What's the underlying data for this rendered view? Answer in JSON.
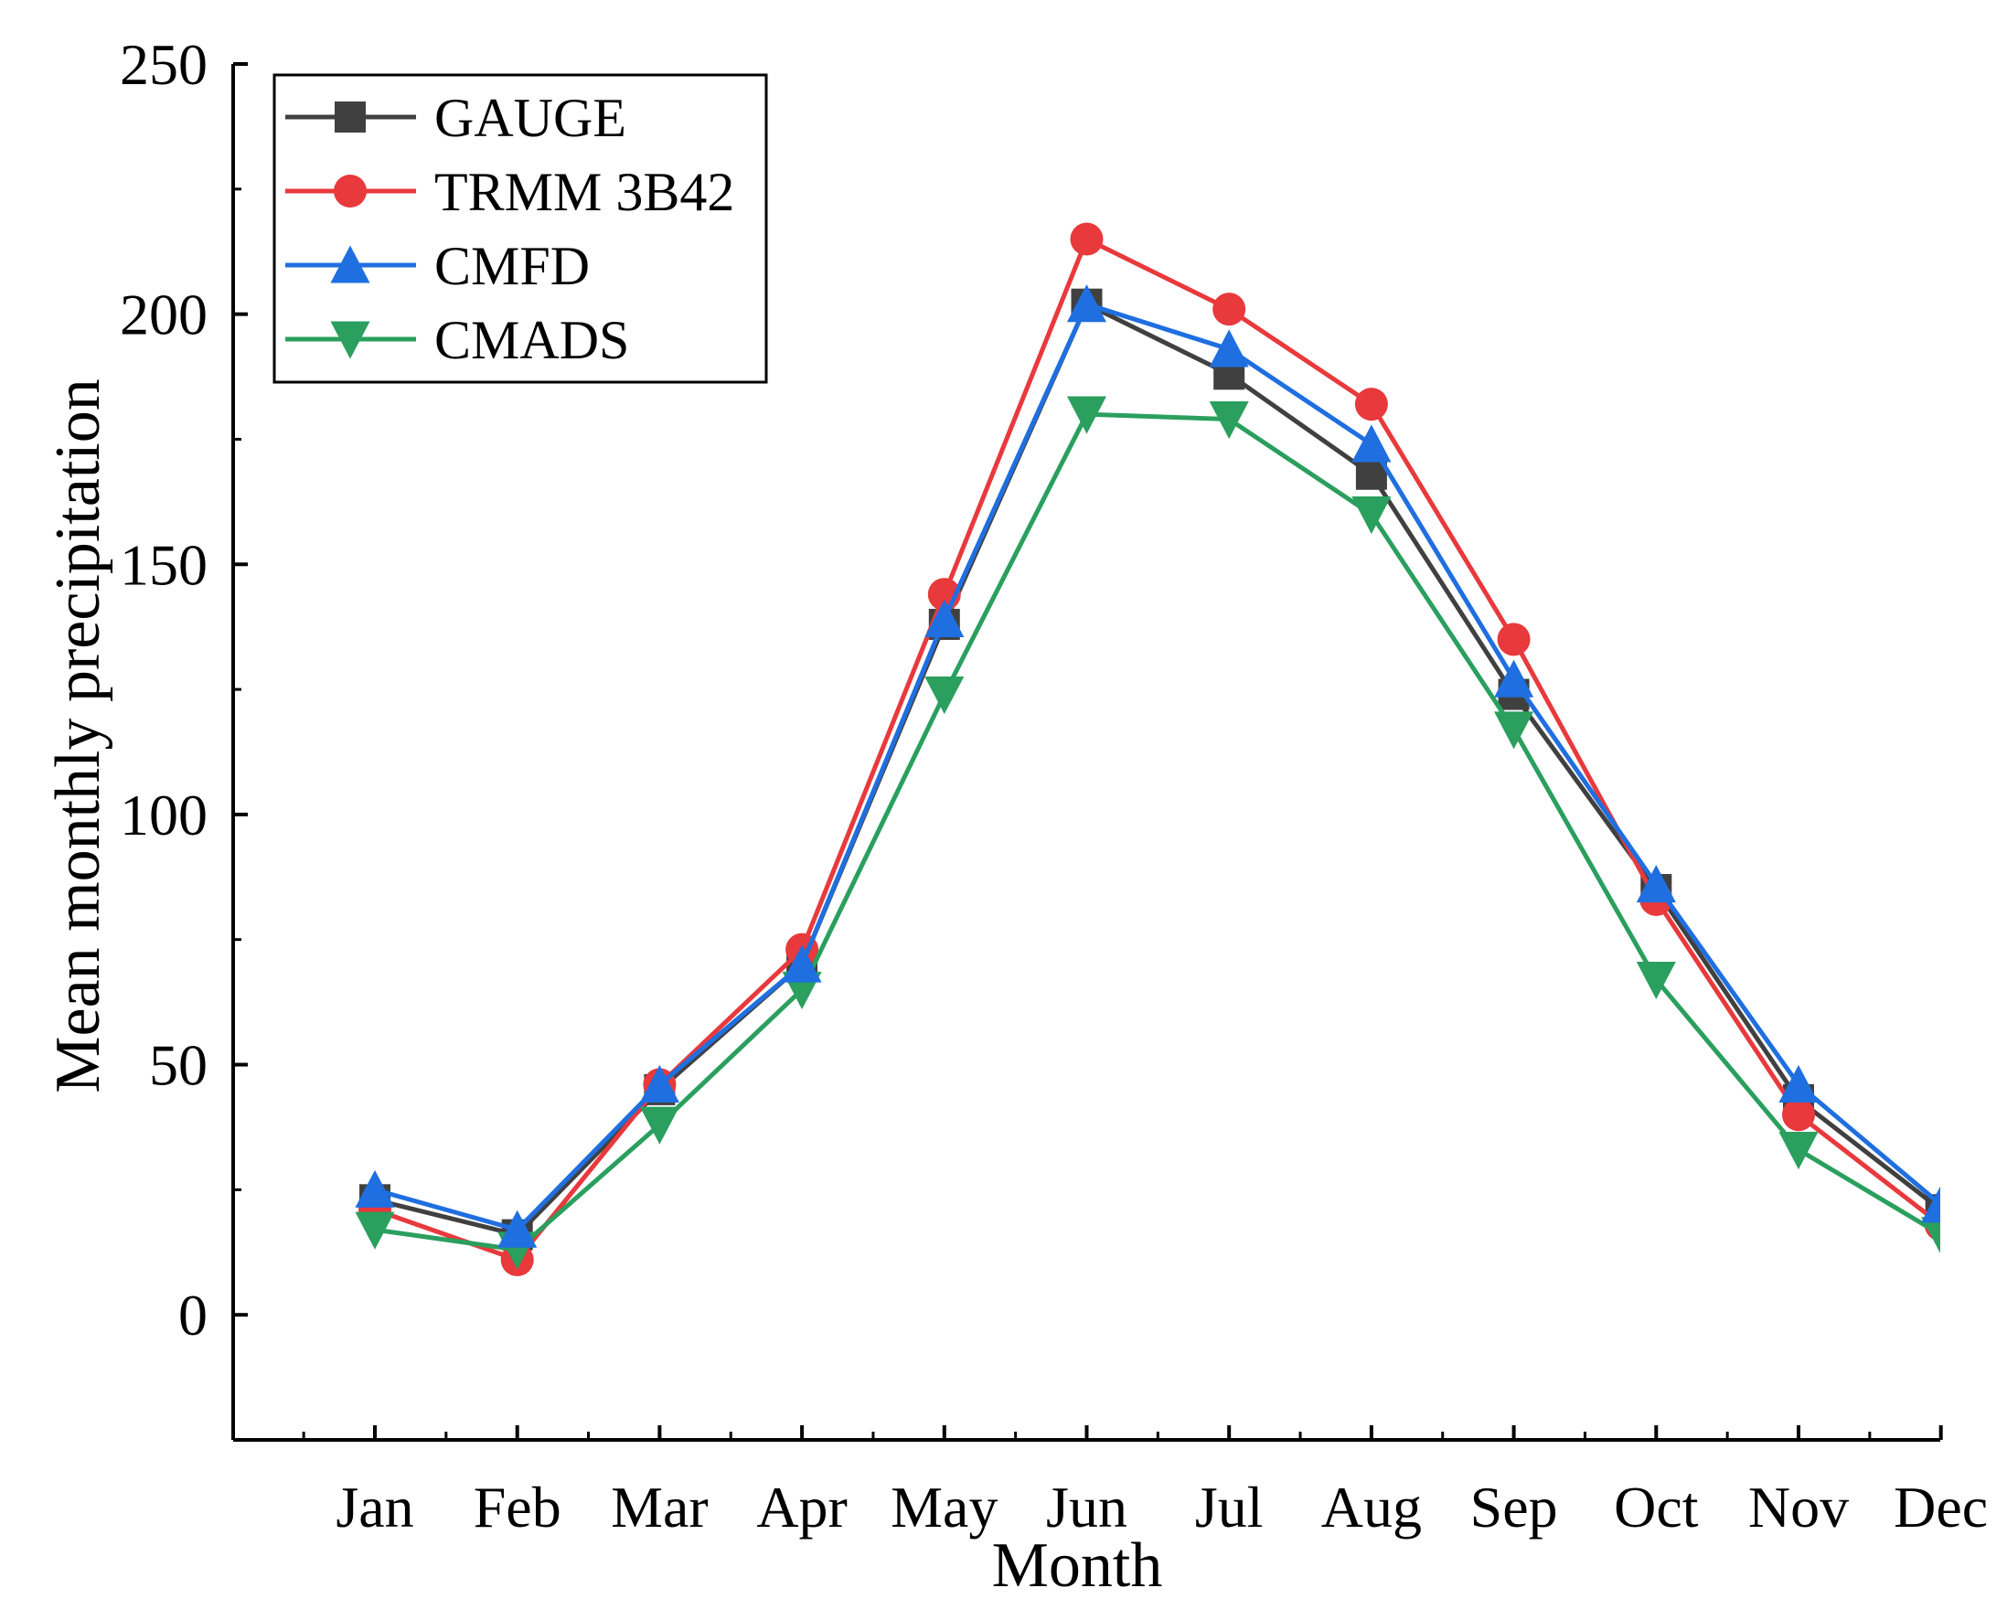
{
  "chart_data": {
    "type": "line",
    "title": "",
    "xlabel": "Month",
    "ylabel": "Mean monthly precipitation",
    "categories": [
      "Jan",
      "Feb",
      "Mar",
      "Apr",
      "May",
      "Jun",
      "Jul",
      "Aug",
      "Sep",
      "Oct",
      "Nov",
      "Dec"
    ],
    "ylim": [
      -25,
      250
    ],
    "yticks": [
      "0",
      "50",
      "100",
      "150",
      "200",
      "250"
    ],
    "ytick_values": [
      0,
      50,
      100,
      150,
      200,
      250
    ],
    "legend_position": "top-left",
    "grid": false,
    "series": [
      {
        "name": "GAUGE",
        "color": "#404040",
        "marker": "square",
        "values": [
          23,
          16,
          45,
          70,
          138,
          202,
          188,
          168,
          124,
          85,
          43,
          21
        ]
      },
      {
        "name": "TRMM 3B42",
        "color": "#e8393c",
        "marker": "circle",
        "values": [
          21,
          11,
          46,
          73,
          144,
          215,
          201,
          182,
          135,
          83,
          40,
          18
        ]
      },
      {
        "name": "CMFD",
        "color": "#1f6fe0",
        "marker": "triangle-up",
        "values": [
          25,
          17,
          46,
          70,
          139,
          202,
          193,
          174,
          127,
          86,
          46,
          22
        ]
      },
      {
        "name": "CMADS",
        "color": "#2a9f5e",
        "marker": "triangle-down",
        "values": [
          17,
          13,
          38,
          65,
          124,
          180,
          179,
          160,
          117,
          67,
          33,
          16
        ]
      }
    ]
  }
}
